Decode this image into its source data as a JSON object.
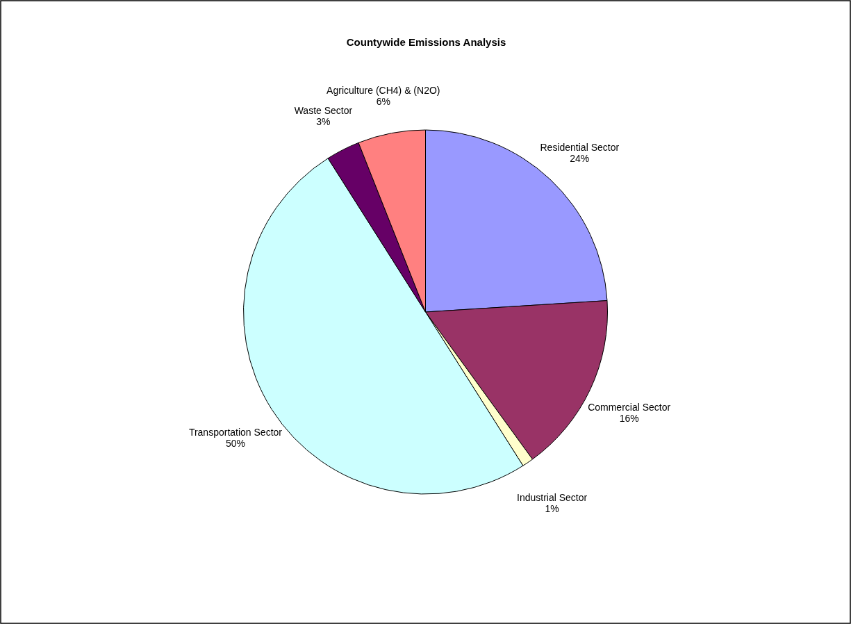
{
  "chart_data": {
    "type": "pie",
    "title": "Countywide Emissions Analysis",
    "categories": [
      "Residential Sector",
      "Commercial Sector",
      "Industrial Sector",
      "Transportation Sector",
      "Waste Sector",
      "Agriculture (CH4) & (N2O)"
    ],
    "values": [
      24,
      16,
      1,
      50,
      3,
      6
    ],
    "value_labels": [
      "24%",
      "16%",
      "1%",
      "50%",
      "3%",
      "6%"
    ],
    "colors": [
      "#9999ff",
      "#993366",
      "#ffffcc",
      "#ccffff",
      "#660066",
      "#ff8080"
    ]
  }
}
